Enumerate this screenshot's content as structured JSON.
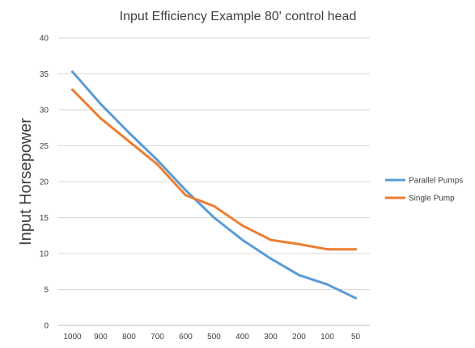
{
  "chart_data": {
    "type": "line",
    "title": "Input Efficiency Example 80' control head",
    "xlabel": "",
    "ylabel": "Input Horsepower",
    "categories": [
      "1000",
      "900",
      "800",
      "700",
      "600",
      "500",
      "400",
      "300",
      "200",
      "100",
      "50"
    ],
    "ylim": [
      0,
      40
    ],
    "yticks": [
      "0",
      "5",
      "10",
      "15",
      "20",
      "25",
      "30",
      "35",
      "40"
    ],
    "grid": true,
    "legend_position": "right",
    "series": [
      {
        "name": "Parallel Pumps",
        "color": "#5b9bd5",
        "values": [
          35.3,
          30.8,
          26.8,
          23.0,
          18.8,
          15.0,
          11.9,
          9.3,
          7.0,
          5.7,
          3.8
        ]
      },
      {
        "name": "Single Pump",
        "color": "#ed7d31",
        "values": [
          32.8,
          28.8,
          25.6,
          22.4,
          18.1,
          16.6,
          13.9,
          11.9,
          11.3,
          10.6,
          10.6
        ]
      }
    ]
  }
}
